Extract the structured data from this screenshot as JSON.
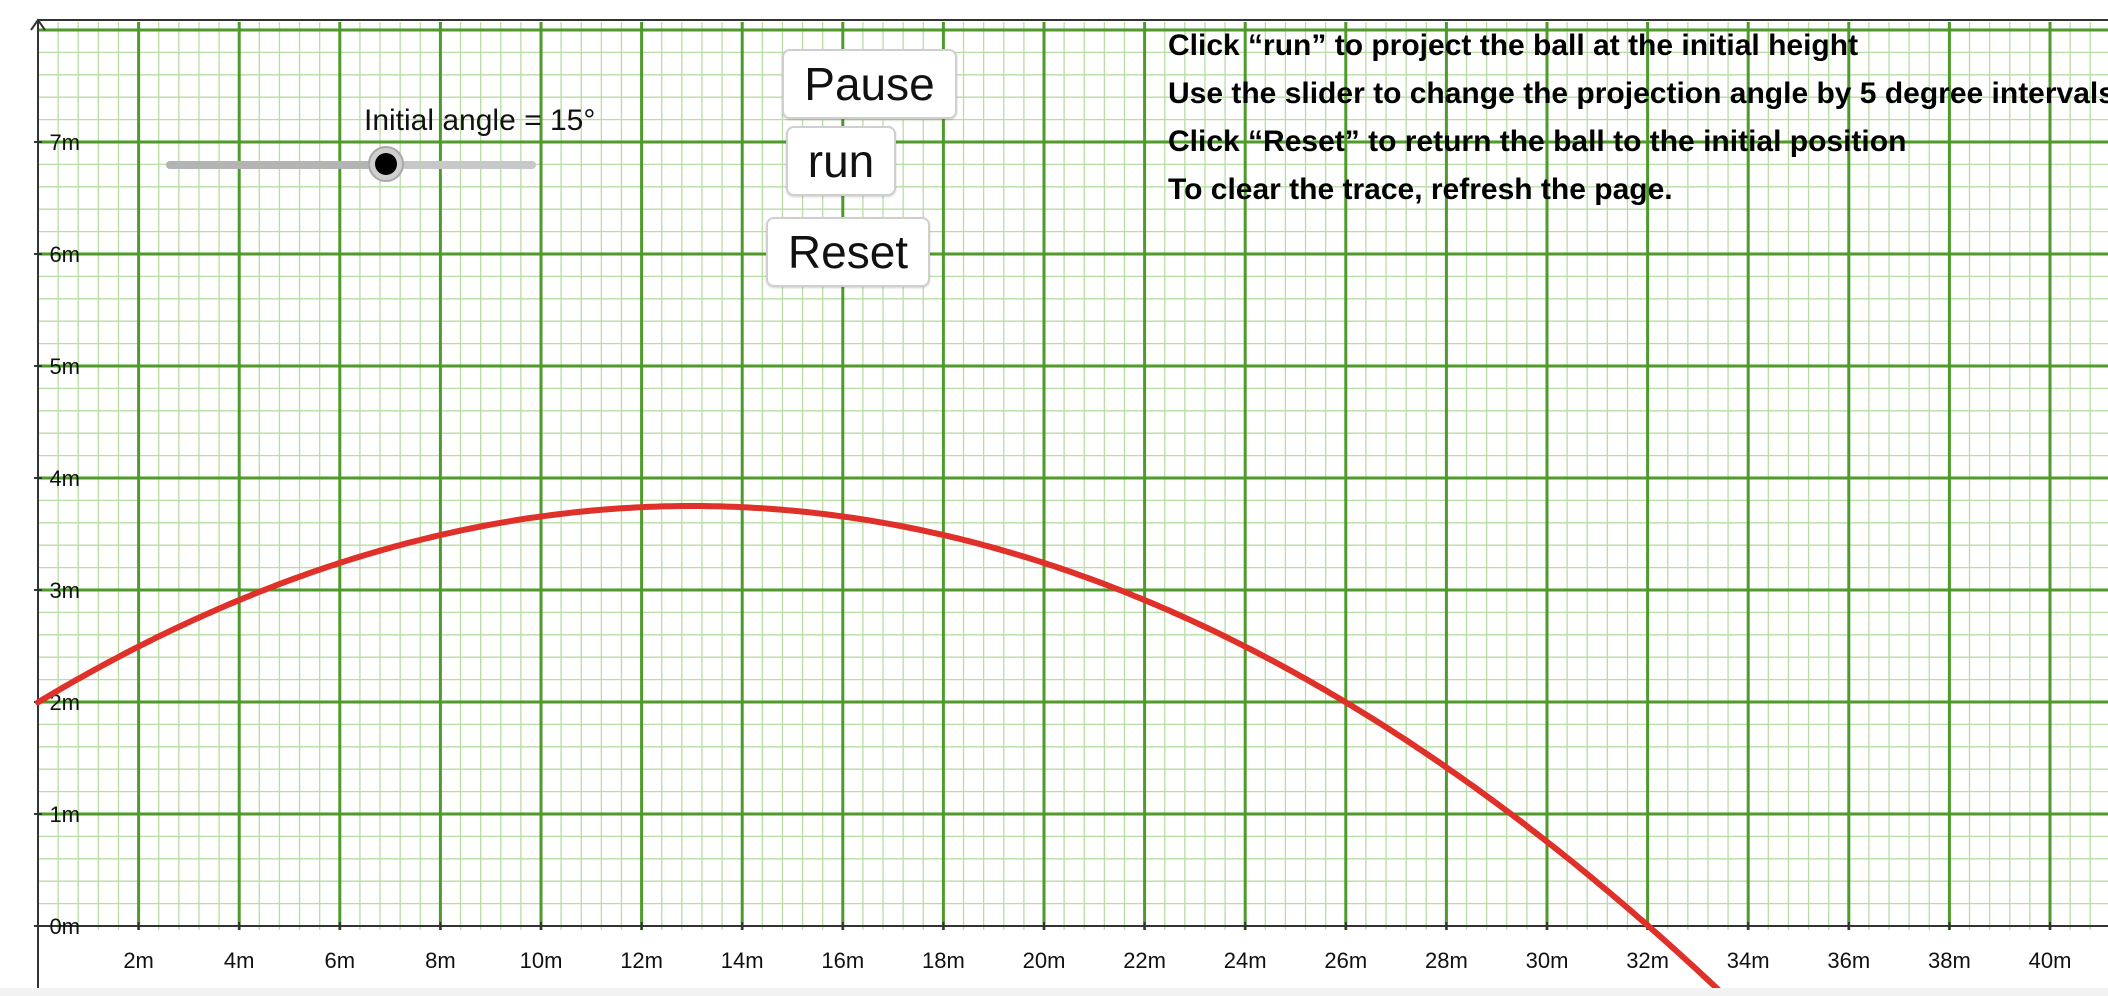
{
  "graph": {
    "x_axis_labels": [
      "2m",
      "4m",
      "6m",
      "8m",
      "10m",
      "12m",
      "14m",
      "16m",
      "18m",
      "20m",
      "22m",
      "24m",
      "26m",
      "28m",
      "30m",
      "32m",
      "34m",
      "36m",
      "38m",
      "40m"
    ],
    "y_axis_labels": [
      "0m",
      "1m",
      "2m",
      "3m",
      "4m",
      "5m",
      "6m",
      "7m"
    ],
    "colors": {
      "major_grid": "#4e9a2a",
      "minor_grid": "#b9dca4",
      "trace": "#e0302a",
      "axis": "#333333"
    },
    "trajectory": {
      "initial_height_m": 2,
      "peak_x_m": 13.0,
      "peak_y_m": 3.75,
      "ground_x_m": 32.0
    }
  },
  "slider": {
    "label": "Initial angle = 15°",
    "value_deg": 15
  },
  "buttons": {
    "pause": "Pause",
    "run": "run",
    "reset": "Reset"
  },
  "instructions": [
    "Click “run” to project the ball at the initial height",
    "Use the slider to change the projection angle by 5 degree intervals",
    "Click “Reset” to return the ball to the initial position",
    "To clear the trace, refresh the page."
  ]
}
